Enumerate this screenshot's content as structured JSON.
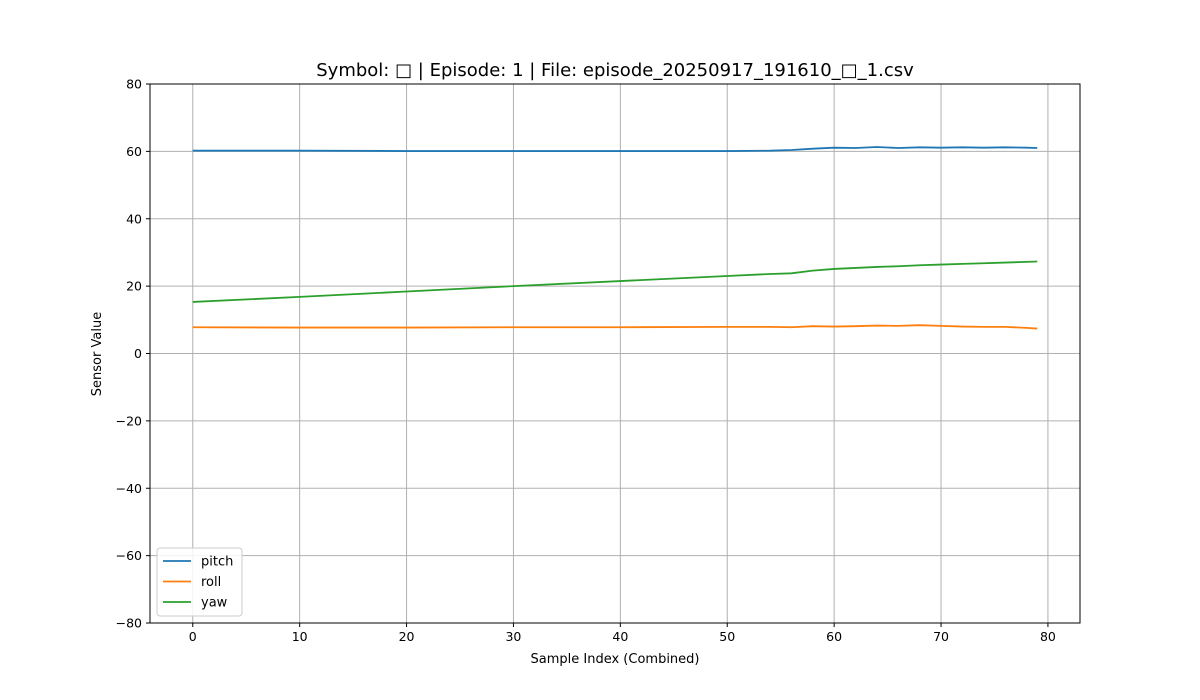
{
  "chart_data": {
    "type": "line",
    "title": "Symbol: □ | Episode: 1 | File: episode_20250917_191610_□_1.csv",
    "xlabel": "Sample Index (Combined)",
    "ylabel": "Sensor Value",
    "xlim": [
      -4,
      83
    ],
    "ylim": [
      -80,
      80
    ],
    "xticks": [
      0,
      10,
      20,
      30,
      40,
      50,
      60,
      70,
      80
    ],
    "yticks": [
      -80,
      -60,
      -40,
      -20,
      0,
      20,
      40,
      60,
      80
    ],
    "grid": true,
    "legend_position": "lower-left",
    "series": [
      {
        "name": "pitch",
        "color": "#1f77b4",
        "x": [
          0,
          10,
          20,
          30,
          40,
          50,
          54,
          56,
          58,
          60,
          62,
          64,
          66,
          68,
          70,
          72,
          74,
          76,
          78,
          79
        ],
        "y": [
          60.2,
          60.2,
          60.1,
          60.1,
          60.1,
          60.1,
          60.2,
          60.4,
          60.8,
          61.1,
          61.0,
          61.3,
          61.0,
          61.2,
          61.1,
          61.2,
          61.1,
          61.2,
          61.1,
          61.0
        ]
      },
      {
        "name": "roll",
        "color": "#ff7f0e",
        "x": [
          0,
          10,
          20,
          30,
          40,
          50,
          54,
          56,
          58,
          60,
          62,
          64,
          66,
          68,
          70,
          72,
          74,
          76,
          78,
          79
        ],
        "y": [
          7.8,
          7.7,
          7.7,
          7.8,
          7.8,
          7.9,
          7.9,
          7.8,
          8.1,
          8.0,
          8.1,
          8.3,
          8.2,
          8.4,
          8.2,
          8.0,
          7.9,
          7.9,
          7.6,
          7.4
        ]
      },
      {
        "name": "yaw",
        "color": "#2ca02c",
        "x": [
          0,
          10,
          20,
          30,
          40,
          50,
          54,
          56,
          58,
          60,
          62,
          64,
          66,
          68,
          70,
          72,
          74,
          76,
          78,
          79
        ],
        "y": [
          15.3,
          16.8,
          18.4,
          20.0,
          21.5,
          23.0,
          23.6,
          23.8,
          24.6,
          25.1,
          25.4,
          25.7,
          25.9,
          26.2,
          26.4,
          26.6,
          26.8,
          27.0,
          27.2,
          27.3
        ]
      }
    ]
  }
}
